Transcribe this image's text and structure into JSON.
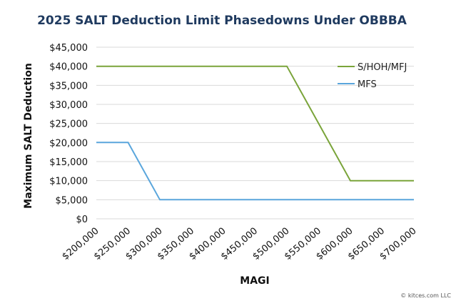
{
  "chart_data": {
    "type": "line",
    "title": "2025 SALT Deduction Limit Phasedowns Under OBBBA",
    "xlabel": "MAGI",
    "ylabel": "Maximum SALT Deduction",
    "xlim": [
      200000,
      700000
    ],
    "ylim": [
      0,
      45000
    ],
    "x_ticks": [
      200000,
      250000,
      300000,
      350000,
      400000,
      450000,
      500000,
      550000,
      600000,
      650000,
      700000
    ],
    "x_tick_labels": [
      "$200,000",
      "$250,000",
      "$300,000",
      "$350,000",
      "$400,000",
      "$450,000",
      "$500,000",
      "$550,000",
      "$600,000",
      "$650,000",
      "$700,000"
    ],
    "y_ticks": [
      0,
      5000,
      10000,
      15000,
      20000,
      25000,
      30000,
      35000,
      40000,
      45000
    ],
    "y_tick_labels": [
      "$0",
      "$5,000",
      "$10,000",
      "$15,000",
      "$20,000",
      "$25,000",
      "$30,000",
      "$35,000",
      "$40,000",
      "$45,000"
    ],
    "grid": true,
    "legend_position": "top-right",
    "series": [
      {
        "name": "S/HOH/MFJ",
        "color": "#7aa43a",
        "x": [
          200000,
          500000,
          600000,
          700000
        ],
        "y": [
          40000,
          40000,
          10000,
          10000
        ]
      },
      {
        "name": "MFS",
        "color": "#5aa6dc",
        "x": [
          200000,
          250000,
          300000,
          700000
        ],
        "y": [
          20000,
          20000,
          5000,
          5000
        ]
      }
    ]
  },
  "credit": "© kitces.com LLC"
}
